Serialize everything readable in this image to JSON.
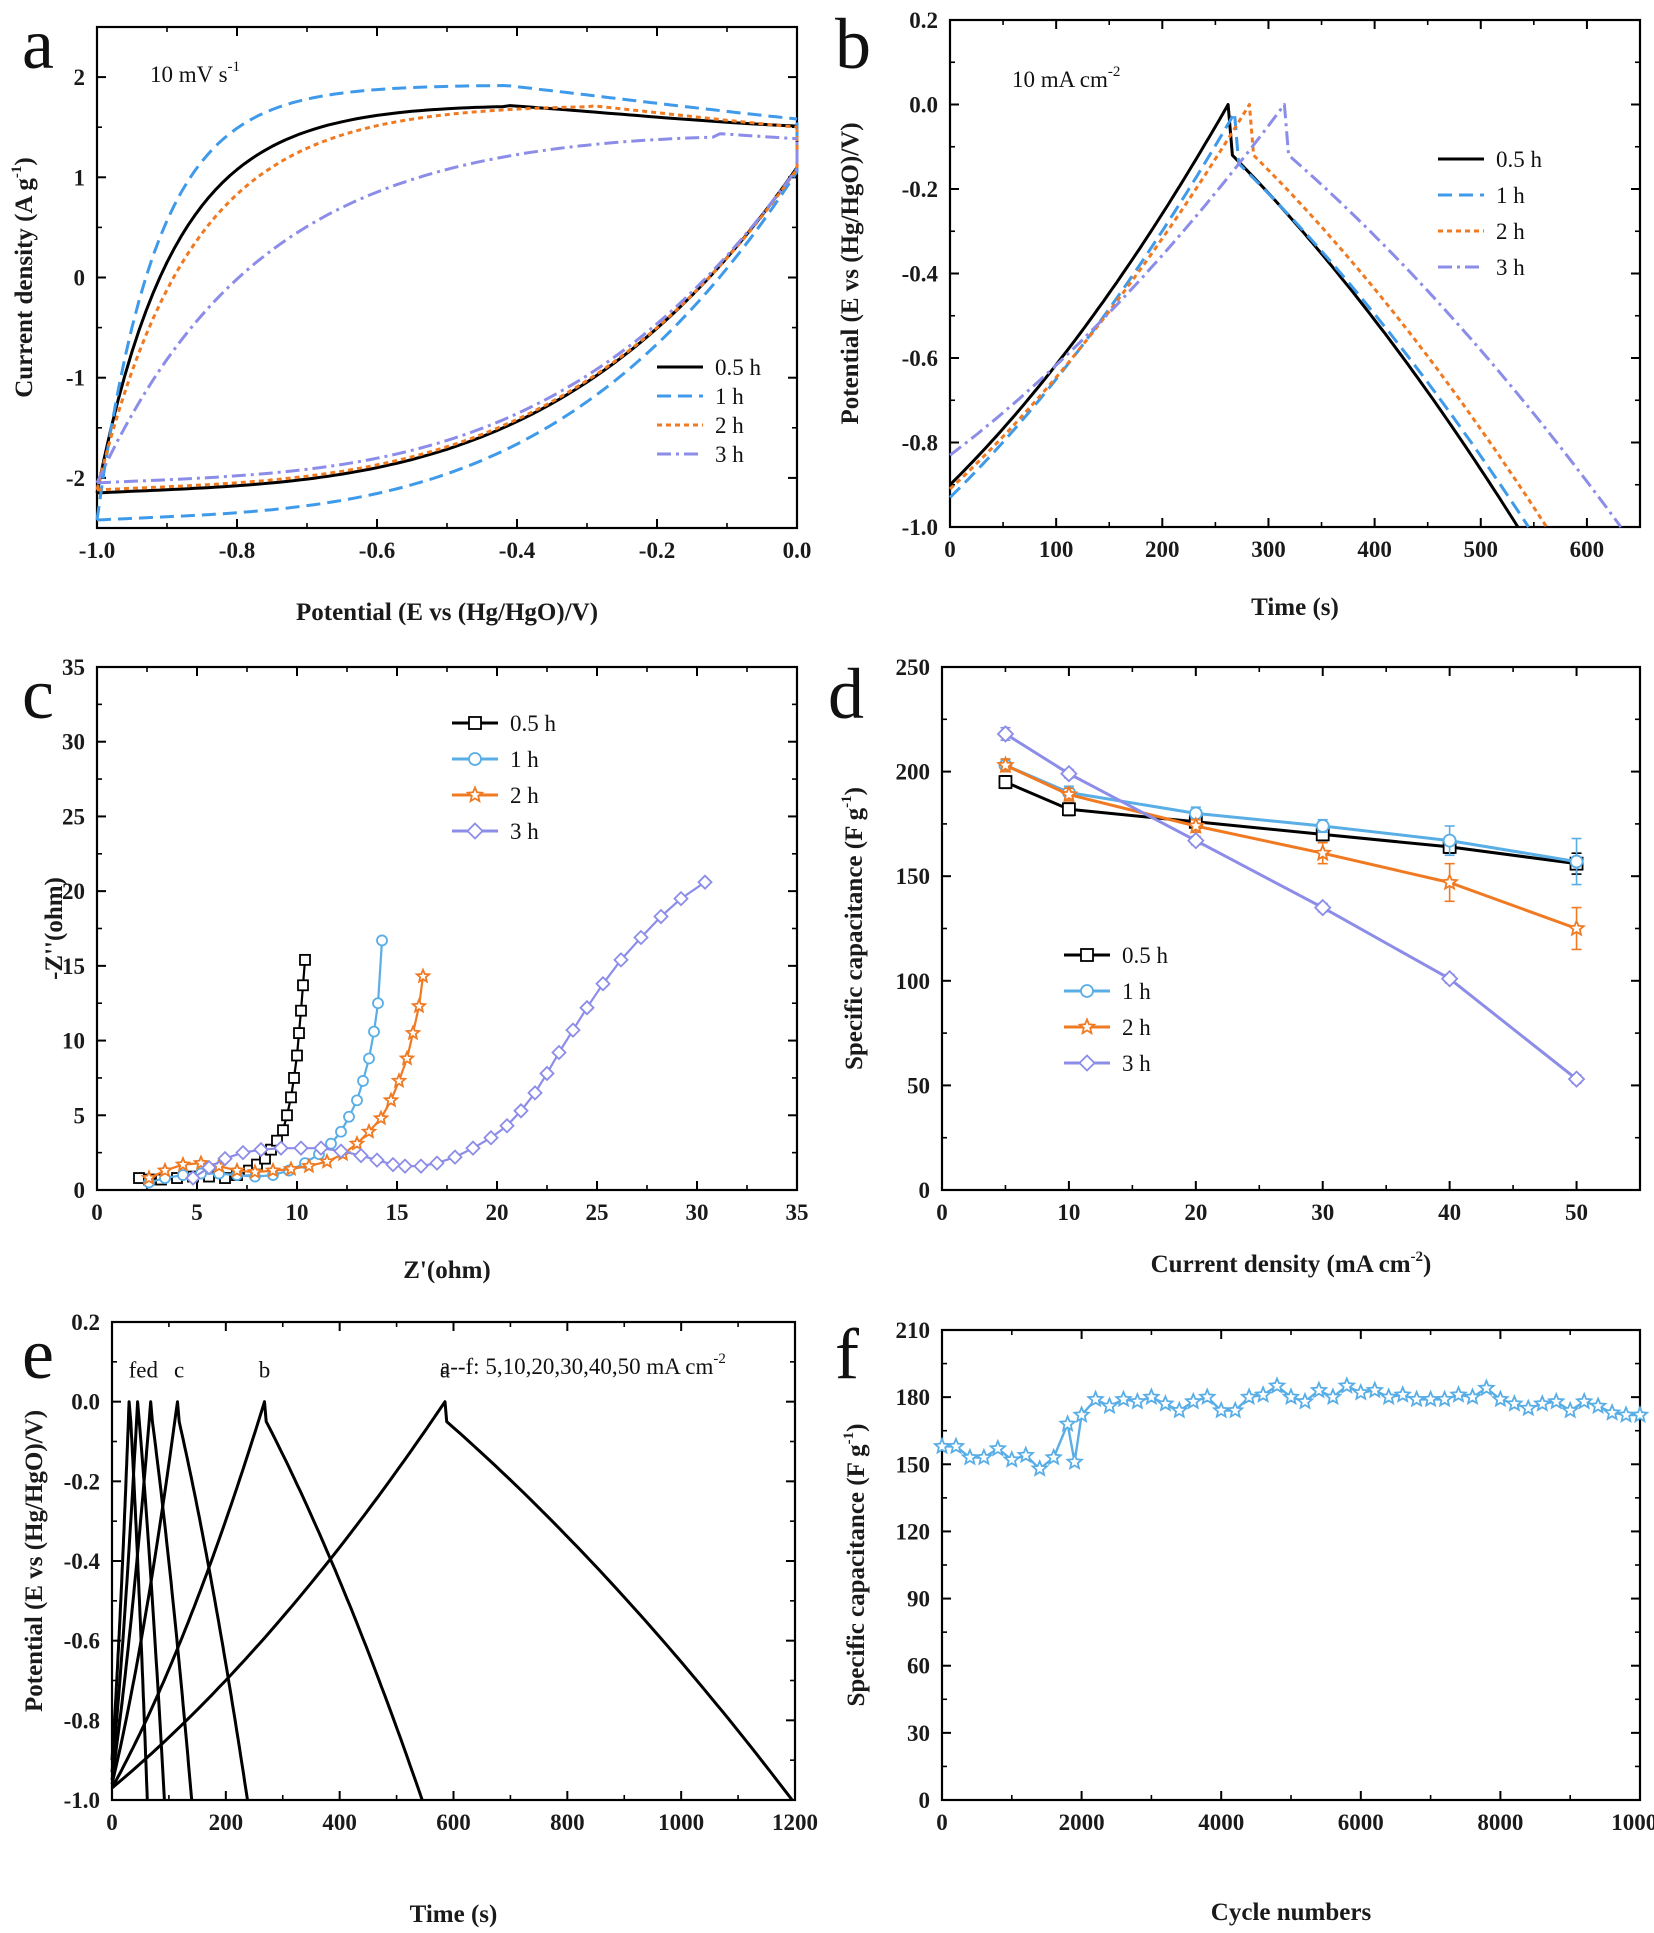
{
  "colors": {
    "black": "#000000",
    "blue": "#3f9bea",
    "orange": "#f07a22",
    "purple": "#8c8de8",
    "cyan": "#5aaee6",
    "frame": "#000000"
  },
  "chart_data": [
    {
      "panel": "a",
      "type": "line",
      "annotation": "10 mV s",
      "annotation_sup": "-1",
      "xlabel": "Potential (E vs (Hg/HgO)/V)",
      "ylabel": "Current density (A g",
      "ylabel_sup": "-1",
      "ylabel_end": ")",
      "xlim": [
        -1.0,
        0.0
      ],
      "ylim": [
        -2.5,
        2.5
      ],
      "xticks": [
        "-1.0",
        "-0.8",
        "-0.6",
        "-0.4",
        "-0.2",
        "0.0"
      ],
      "yticks": [
        "-2",
        "-1",
        "0",
        "1",
        "2"
      ],
      "legend_position": "bottom-right",
      "series": [
        {
          "name": "0.5 h",
          "style": "solid",
          "color": "black",
          "params": {
            "a": -2.15,
            "b": 1.38,
            "c": 1.72,
            "xc": -0.42,
            "d": 1.5,
            "k": 0.22,
            "p": 3.2
          }
        },
        {
          "name": "1 h",
          "style": "dash",
          "color": "blue",
          "params": {
            "a": -2.42,
            "b": 1.36,
            "c": 1.92,
            "xc": -0.42,
            "d": 1.55,
            "k": 0.1,
            "p": 4.0
          }
        },
        {
          "name": "2 h",
          "style": "dot",
          "color": "orange",
          "params": {
            "a": -2.12,
            "b": 1.36,
            "c": 1.72,
            "xc": -0.3,
            "d": 1.48,
            "k": 0.15,
            "p": 2.6
          }
        },
        {
          "name": "3 h",
          "style": "dashdot",
          "color": "purple",
          "params": {
            "a": -2.05,
            "b": 1.36,
            "c": 1.44,
            "xc": -0.12,
            "d": 1.38,
            "k": 0.24,
            "p": 1.7
          }
        }
      ]
    },
    {
      "panel": "b",
      "type": "line",
      "annotation": "10 mA cm",
      "annotation_sup": "-2",
      "xlabel": "Time (s)",
      "ylabel": "Potential (E vs (Hg/HgO)/V)",
      "xlim": [
        0,
        650
      ],
      "ylim": [
        -1.0,
        0.2
      ],
      "xticks": [
        "0",
        "100",
        "200",
        "300",
        "400",
        "500",
        "600"
      ],
      "yticks": [
        "-1.0",
        "-0.8",
        "-0.6",
        "-0.4",
        "-0.2",
        "0.0",
        "0.2"
      ],
      "legend_position": "top-right",
      "series": [
        {
          "name": "0.5 h",
          "style": "solid",
          "color": "black",
          "t_peak": 262,
          "t_end": 535,
          "v_start": -0.9,
          "v_peak": 0.0
        },
        {
          "name": "1 h",
          "style": "dash",
          "color": "blue",
          "t_peak": 268,
          "t_end": 545,
          "v_start": -0.93,
          "v_peak": -0.02
        },
        {
          "name": "2 h",
          "style": "dot",
          "color": "orange",
          "t_peak": 282,
          "t_end": 562,
          "v_start": -0.91,
          "v_peak": 0.0
        },
        {
          "name": "3 h",
          "style": "dashdot",
          "color": "purple",
          "t_peak": 315,
          "t_end": 632,
          "v_start": -0.83,
          "v_peak": 0.0
        }
      ]
    },
    {
      "panel": "c",
      "type": "scatter",
      "xlabel": "Z'(ohm)",
      "ylabel": "-Z''(ohm)",
      "xlim": [
        0,
        35
      ],
      "ylim": [
        0,
        35
      ],
      "xticks": [
        "0",
        "5",
        "10",
        "15",
        "20",
        "25",
        "30",
        "35"
      ],
      "yticks": [
        "0",
        "5",
        "10",
        "15",
        "20",
        "25",
        "30",
        "35"
      ],
      "legend_position": "top-center",
      "series": [
        {
          "name": "0.5 h",
          "marker": "square",
          "color": "black",
          "x": [
            2.1,
            2.6,
            3.2,
            4.0,
            4.8,
            5.6,
            6.4,
            7.0,
            7.6,
            8.0,
            8.4,
            8.7,
            9.0,
            9.3,
            9.5,
            9.7,
            9.85,
            10.0,
            10.1,
            10.2,
            10.3,
            10.4
          ],
          "y": [
            0.8,
            0.7,
            0.7,
            0.8,
            0.9,
            0.9,
            0.8,
            1.0,
            1.3,
            1.7,
            2.1,
            2.7,
            3.3,
            4.0,
            5.0,
            6.2,
            7.5,
            9.0,
            10.5,
            12.0,
            13.7,
            15.4
          ]
        },
        {
          "name": "1 h",
          "marker": "circle",
          "color": "cyan",
          "x": [
            2.6,
            3.4,
            4.3,
            5.2,
            6.1,
            7.0,
            7.9,
            8.8,
            9.6,
            10.4,
            11.1,
            11.7,
            12.2,
            12.6,
            13.0,
            13.3,
            13.6,
            13.85,
            14.05,
            14.25
          ],
          "y": [
            0.5,
            0.8,
            1.0,
            1.1,
            1.1,
            1.0,
            0.9,
            1.0,
            1.3,
            1.8,
            2.4,
            3.1,
            3.9,
            4.9,
            6.0,
            7.3,
            8.8,
            10.6,
            12.5,
            16.7
          ]
        },
        {
          "name": "2 h",
          "marker": "star",
          "color": "orange",
          "x": [
            2.6,
            3.4,
            4.3,
            5.2,
            6.1,
            7.0,
            7.9,
            8.8,
            9.7,
            10.6,
            11.5,
            12.3,
            13.0,
            13.6,
            14.2,
            14.7,
            15.1,
            15.5,
            15.8,
            16.1,
            16.3
          ],
          "y": [
            0.8,
            1.3,
            1.7,
            1.8,
            1.6,
            1.3,
            1.2,
            1.3,
            1.4,
            1.6,
            1.9,
            2.4,
            3.1,
            3.9,
            4.8,
            6.0,
            7.3,
            8.8,
            10.5,
            12.3,
            14.3
          ]
        },
        {
          "name": "3 h",
          "marker": "diamond",
          "color": "purple",
          "x": [
            4.8,
            5.6,
            6.4,
            7.3,
            8.2,
            9.2,
            10.2,
            11.2,
            12.2,
            13.2,
            14.0,
            14.8,
            15.4,
            16.2,
            17.0,
            17.9,
            18.8,
            19.7,
            20.5,
            21.2,
            21.9,
            22.5,
            23.1,
            23.8,
            24.5,
            25.3,
            26.2,
            27.2,
            28.2,
            29.2,
            30.4
          ],
          "y": [
            0.8,
            1.5,
            2.1,
            2.5,
            2.7,
            2.8,
            2.8,
            2.8,
            2.6,
            2.3,
            2.0,
            1.7,
            1.6,
            1.6,
            1.8,
            2.2,
            2.8,
            3.5,
            4.3,
            5.3,
            6.5,
            7.8,
            9.2,
            10.7,
            12.2,
            13.8,
            15.4,
            16.9,
            18.3,
            19.5,
            20.6
          ]
        }
      ]
    },
    {
      "panel": "d",
      "type": "line",
      "xlabel": "Current density (mA cm",
      "xlabel_sup": "-2",
      "xlabel_end": ")",
      "ylabel": "Specific capacitance (F g",
      "ylabel_sup": "-1",
      "ylabel_end": ")",
      "xlim": [
        0,
        55
      ],
      "ylim": [
        0,
        250
      ],
      "xticks": [
        "0",
        "10",
        "20",
        "30",
        "40",
        "50"
      ],
      "yticks": [
        "0",
        "50",
        "100",
        "150",
        "200",
        "250"
      ],
      "legend_position": "center-left",
      "categories": [
        5,
        10,
        20,
        30,
        40,
        50
      ],
      "series": [
        {
          "name": "0.5 h",
          "marker": "square",
          "color": "black",
          "values": [
            195,
            182,
            176,
            170,
            164,
            156
          ],
          "err": [
            3,
            3,
            3,
            3,
            3,
            5
          ]
        },
        {
          "name": "1 h",
          "marker": "circle",
          "color": "cyan",
          "values": [
            203,
            190,
            180,
            174,
            167,
            157
          ],
          "err": [
            3,
            3,
            3,
            3,
            7,
            11
          ]
        },
        {
          "name": "2 h",
          "marker": "star",
          "color": "orange",
          "values": [
            203,
            189,
            174,
            161,
            147,
            125
          ],
          "err": [
            3,
            3,
            3,
            5,
            9,
            10
          ]
        },
        {
          "name": "3 h",
          "marker": "diamond",
          "color": "purple",
          "values": [
            218,
            199,
            167,
            135,
            101,
            53
          ],
          "err": [
            3,
            2,
            2,
            2,
            2,
            2
          ]
        }
      ]
    },
    {
      "panel": "e",
      "type": "line",
      "annotation": "a--f: 5,10,20,30,40,50 mA cm",
      "annotation_sup": "-2",
      "xlabel": "Time (s)",
      "ylabel": "Potential (E vs (Hg/HgO)/V)",
      "xlim": [
        0,
        1200
      ],
      "ylim": [
        -1.0,
        0.2
      ],
      "xticks": [
        "0",
        "200",
        "400",
        "600",
        "800",
        "1000",
        "1200"
      ],
      "yticks": [
        "-1.0",
        "-0.8",
        "-0.6",
        "-0.4",
        "-0.2",
        "0.0",
        "0.2"
      ],
      "series": [
        {
          "name": "a",
          "color": "black",
          "t_peak": 585,
          "t_end": 1195,
          "v_start": -0.97
        },
        {
          "name": "b",
          "color": "black",
          "t_peak": 268,
          "t_end": 545,
          "v_start": -0.97
        },
        {
          "name": "c",
          "color": "black",
          "t_peak": 115,
          "t_end": 238,
          "v_start": -0.96
        },
        {
          "name": "d",
          "color": "black",
          "t_peak": 68,
          "t_end": 140,
          "v_start": -0.95
        },
        {
          "name": "e",
          "color": "black",
          "t_peak": 45,
          "t_end": 92,
          "v_start": -0.93
        },
        {
          "name": "f",
          "color": "black",
          "t_peak": 30,
          "t_end": 62,
          "v_start": -0.9
        }
      ],
      "curve_labels": [
        {
          "text": "a",
          "x": 585,
          "y": 0.02
        },
        {
          "text": "b",
          "x": 268,
          "y": 0.02
        },
        {
          "text": "c",
          "x": 118,
          "y": 0.02
        },
        {
          "text": "fed",
          "x": 55,
          "y": 0.02
        }
      ]
    },
    {
      "panel": "f",
      "type": "line",
      "xlabel": "Cycle numbers",
      "ylabel": "Specific capacitance (F g",
      "ylabel_sup": "-1",
      "ylabel_end": ")",
      "xlim": [
        0,
        10000
      ],
      "ylim": [
        0,
        210
      ],
      "xticks": [
        "0",
        "2000",
        "4000",
        "6000",
        "8000",
        "10000"
      ],
      "yticks": [
        "0",
        "30",
        "60",
        "90",
        "120",
        "150",
        "180",
        "210"
      ],
      "series": [
        {
          "name": "capacitance",
          "marker": "star",
          "color": "cyan",
          "x": [
            0,
            200,
            400,
            600,
            800,
            1000,
            1200,
            1400,
            1600,
            1800,
            1900,
            2000,
            2200,
            2400,
            2600,
            2800,
            3000,
            3200,
            3400,
            3600,
            3800,
            4000,
            4200,
            4400,
            4600,
            4800,
            5000,
            5200,
            5400,
            5600,
            5800,
            6000,
            6200,
            6400,
            6600,
            6800,
            7000,
            7200,
            7400,
            7600,
            7800,
            8000,
            8200,
            8400,
            8600,
            8800,
            9000,
            9200,
            9400,
            9600,
            9800,
            10000
          ],
          "values": [
            158,
            158,
            153,
            153,
            157,
            152,
            154,
            148,
            153,
            168,
            151,
            172,
            179,
            176,
            179,
            178,
            180,
            177,
            174,
            178,
            180,
            174,
            174,
            180,
            181,
            185,
            180,
            178,
            183,
            180,
            185,
            182,
            183,
            180,
            181,
            179,
            179,
            179,
            181,
            180,
            184,
            179,
            177,
            175,
            177,
            178,
            174,
            178,
            176,
            173,
            172,
            172
          ]
        }
      ]
    }
  ]
}
